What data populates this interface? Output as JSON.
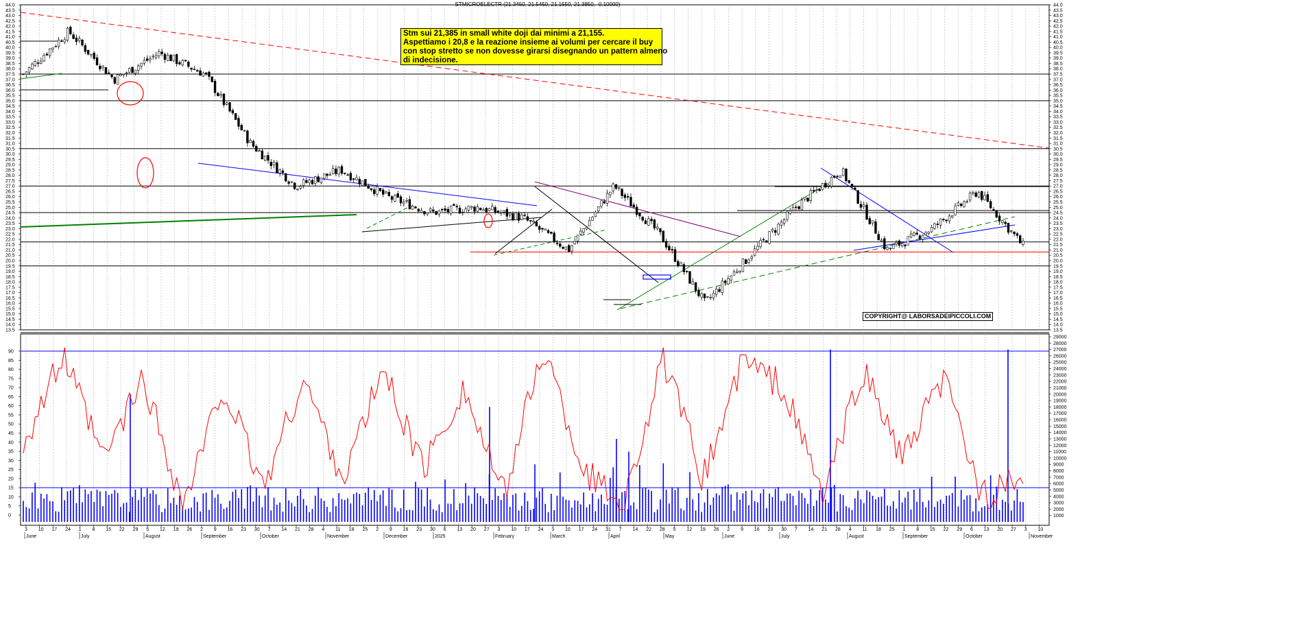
{
  "header": {
    "title": "STMICROELECTR (21.3450, 21.5450, 21.1550, 21.3850, -0.10000)"
  },
  "annotation": {
    "lines": [
      "Stm sui 21,385 in small white doji dai minimi a 21,155.",
      "Aspettiamo i 20,8 e la reazione insieme ai volumi per cercare il buy",
      "con stop stretto se non dovesse girarsi disegnando un pattern almeno",
      "di indecisione."
    ]
  },
  "copyright": "COPYRIGHT@ LABORSADEIPICCOLI.COM",
  "colors": {
    "candle": "#000000",
    "resistance": "#ff0000",
    "trend_blue": "#0000ff",
    "trend_green": "#008000",
    "oscillator": "#ff0000",
    "volume": "#0000ff",
    "note_background": "#ffff00"
  },
  "chart_data": [
    {
      "type": "candlestick",
      "title": "STMICROELECTR (21.3450, 21.5450, 21.1550, 21.3850, -0.10000)",
      "ylim": [
        13.5,
        44.0
      ],
      "y_ticks": [
        "44.0",
        "43.5",
        "43.0",
        "42.5",
        "42.0",
        "41.5",
        "41.0",
        "40.5",
        "40.0",
        "39.5",
        "39.0",
        "38.5",
        "38.0",
        "37.5",
        "37.0",
        "36.5",
        "36.0",
        "35.5",
        "35.0",
        "34.5",
        "34.0",
        "33.5",
        "33.0",
        "32.5",
        "32.0",
        "31.5",
        "31.0",
        "30.5",
        "30.0",
        "29.5",
        "29.0",
        "28.5",
        "28.0",
        "27.5",
        "27.0",
        "26.5",
        "26.0",
        "25.5",
        "25.0",
        "24.5",
        "24.0",
        "23.5",
        "23.0",
        "22.5",
        "22.0",
        "21.5",
        "21.0",
        "20.5",
        "20.0",
        "19.5",
        "19.0",
        "18.5",
        "18.0",
        "17.5",
        "17.0",
        "16.5",
        "16.0",
        "15.5",
        "15.0",
        "14.5",
        "14.0",
        "13.5"
      ],
      "horizontal_levels": [
        37.5,
        35.0,
        30.5,
        27.0,
        24.5,
        21.75,
        19.5
      ],
      "support_line_red": 20.8,
      "last": {
        "open": 21.345,
        "high": 21.545,
        "low": 21.155,
        "close": 21.385,
        "change": -0.1
      },
      "key_points": [
        {
          "x": "June",
          "y": 37.5
        },
        {
          "x": "late June",
          "y": 41.5
        },
        {
          "x": "July",
          "y": 37.0
        },
        {
          "x": "mid July",
          "y": 39.5
        },
        {
          "x": "late July",
          "y": 37.5
        },
        {
          "x": "August",
          "y": 31.0
        },
        {
          "x": "early August",
          "y": 27.0
        },
        {
          "x": "September",
          "y": 28.5
        },
        {
          "x": "October",
          "y": 26.0
        },
        {
          "x": "November",
          "y": 24.5
        },
        {
          "x": "December",
          "y": 25.0
        },
        {
          "x": "January",
          "y": 24.0
        },
        {
          "x": "late January",
          "y": 21.0
        },
        {
          "x": "February",
          "y": 27.0
        },
        {
          "x": "March",
          "y": 22.5
        },
        {
          "x": "April",
          "y": 16.0
        },
        {
          "x": "May",
          "y": 20.5
        },
        {
          "x": "June",
          "y": 25.0
        },
        {
          "x": "July",
          "y": 28.5
        },
        {
          "x": "August",
          "y": 21.0
        },
        {
          "x": "September",
          "y": 23.0
        },
        {
          "x": "October",
          "y": 26.5
        },
        {
          "x": "late October",
          "y": 21.385
        }
      ]
    },
    {
      "type": "line",
      "name": "oscillator",
      "ylim": [
        0,
        90
      ],
      "y_ticks": [
        "90",
        "85",
        "80",
        "75",
        "70",
        "65",
        "60",
        "55",
        "50",
        "45",
        "40",
        "35",
        "30",
        "25",
        "20",
        "15",
        "10",
        "5",
        "0"
      ],
      "overbought_level": 90,
      "oversold_level": 15,
      "key_points": [
        {
          "x": "June",
          "y": 40
        },
        {
          "x": "late June",
          "y": 87
        },
        {
          "x": "July",
          "y": 30
        },
        {
          "x": "mid July",
          "y": 75
        },
        {
          "x": "August",
          "y": 5
        },
        {
          "x": "September",
          "y": 70
        },
        {
          "x": "October",
          "y": 15
        },
        {
          "x": "October",
          "y": 75
        },
        {
          "x": "November",
          "y": 20
        },
        {
          "x": "November",
          "y": 80
        },
        {
          "x": "December",
          "y": 25
        },
        {
          "x": "January",
          "y": 70
        },
        {
          "x": "late January",
          "y": 10
        },
        {
          "x": "February",
          "y": 92
        },
        {
          "x": "March",
          "y": 25
        },
        {
          "x": "April",
          "y": 5
        },
        {
          "x": "May",
          "y": 85
        },
        {
          "x": "June",
          "y": 20
        },
        {
          "x": "June",
          "y": 85
        },
        {
          "x": "July",
          "y": 70
        },
        {
          "x": "August",
          "y": 10
        },
        {
          "x": "August",
          "y": 80
        },
        {
          "x": "September",
          "y": 30
        },
        {
          "x": "October",
          "y": 75
        },
        {
          "x": "late October",
          "y": 10
        },
        {
          "x": "late October",
          "y": 20
        }
      ]
    },
    {
      "type": "bar",
      "name": "volume",
      "ylim": [
        0,
        29000
      ],
      "y_ticks": [
        "29000",
        "28000",
        "27000",
        "26000",
        "25000",
        "24000",
        "23000",
        "22000",
        "21000",
        "20000",
        "19000",
        "18000",
        "17000",
        "16000",
        "15000",
        "14000",
        "13000",
        "12000",
        "11000",
        "10000",
        "9000",
        "8000",
        "7000",
        "6000",
        "5000",
        "4000",
        "3000",
        "2000",
        "1000"
      ],
      "reference_levels": [
        27000,
        5000
      ],
      "spikes": [
        {
          "x": "late July",
          "y": 20000
        },
        {
          "x": "late January",
          "y": 18000
        },
        {
          "x": "February",
          "y": 9000
        },
        {
          "x": "April",
          "y": 13000
        },
        {
          "x": "April",
          "y": 11000
        },
        {
          "x": "July",
          "y": 27000
        },
        {
          "x": "late October",
          "y": 27000
        }
      ]
    }
  ],
  "x_axis": {
    "day_labels": [
      "3",
      "10",
      "17",
      "24",
      "1",
      "8",
      "15",
      "22",
      "29",
      "5",
      "12",
      "19",
      "26",
      "2",
      "9",
      "16",
      "23",
      "30",
      "7",
      "14",
      "21",
      "28",
      "4",
      "11",
      "18",
      "25",
      "2",
      "9",
      "16",
      "23",
      "30",
      "6",
      "13",
      "20",
      "27",
      "3",
      "10",
      "17",
      "24",
      "3",
      "10",
      "17",
      "24",
      "31",
      "7",
      "14",
      "22",
      "28",
      "5",
      "12",
      "19",
      "26",
      "2",
      "9",
      "16",
      "23",
      "30",
      "7",
      "14",
      "21",
      "28",
      "4",
      "11",
      "18",
      "25",
      "1",
      "8",
      "15",
      "22",
      "29",
      "6",
      "13",
      "20",
      "27",
      "3",
      "10"
    ],
    "month_labels": [
      "June",
      "July",
      "August",
      "September",
      "October",
      "November",
      "December",
      "2025",
      "February",
      "March",
      "April",
      "May",
      "June",
      "July",
      "August",
      "September",
      "October",
      "November"
    ]
  }
}
